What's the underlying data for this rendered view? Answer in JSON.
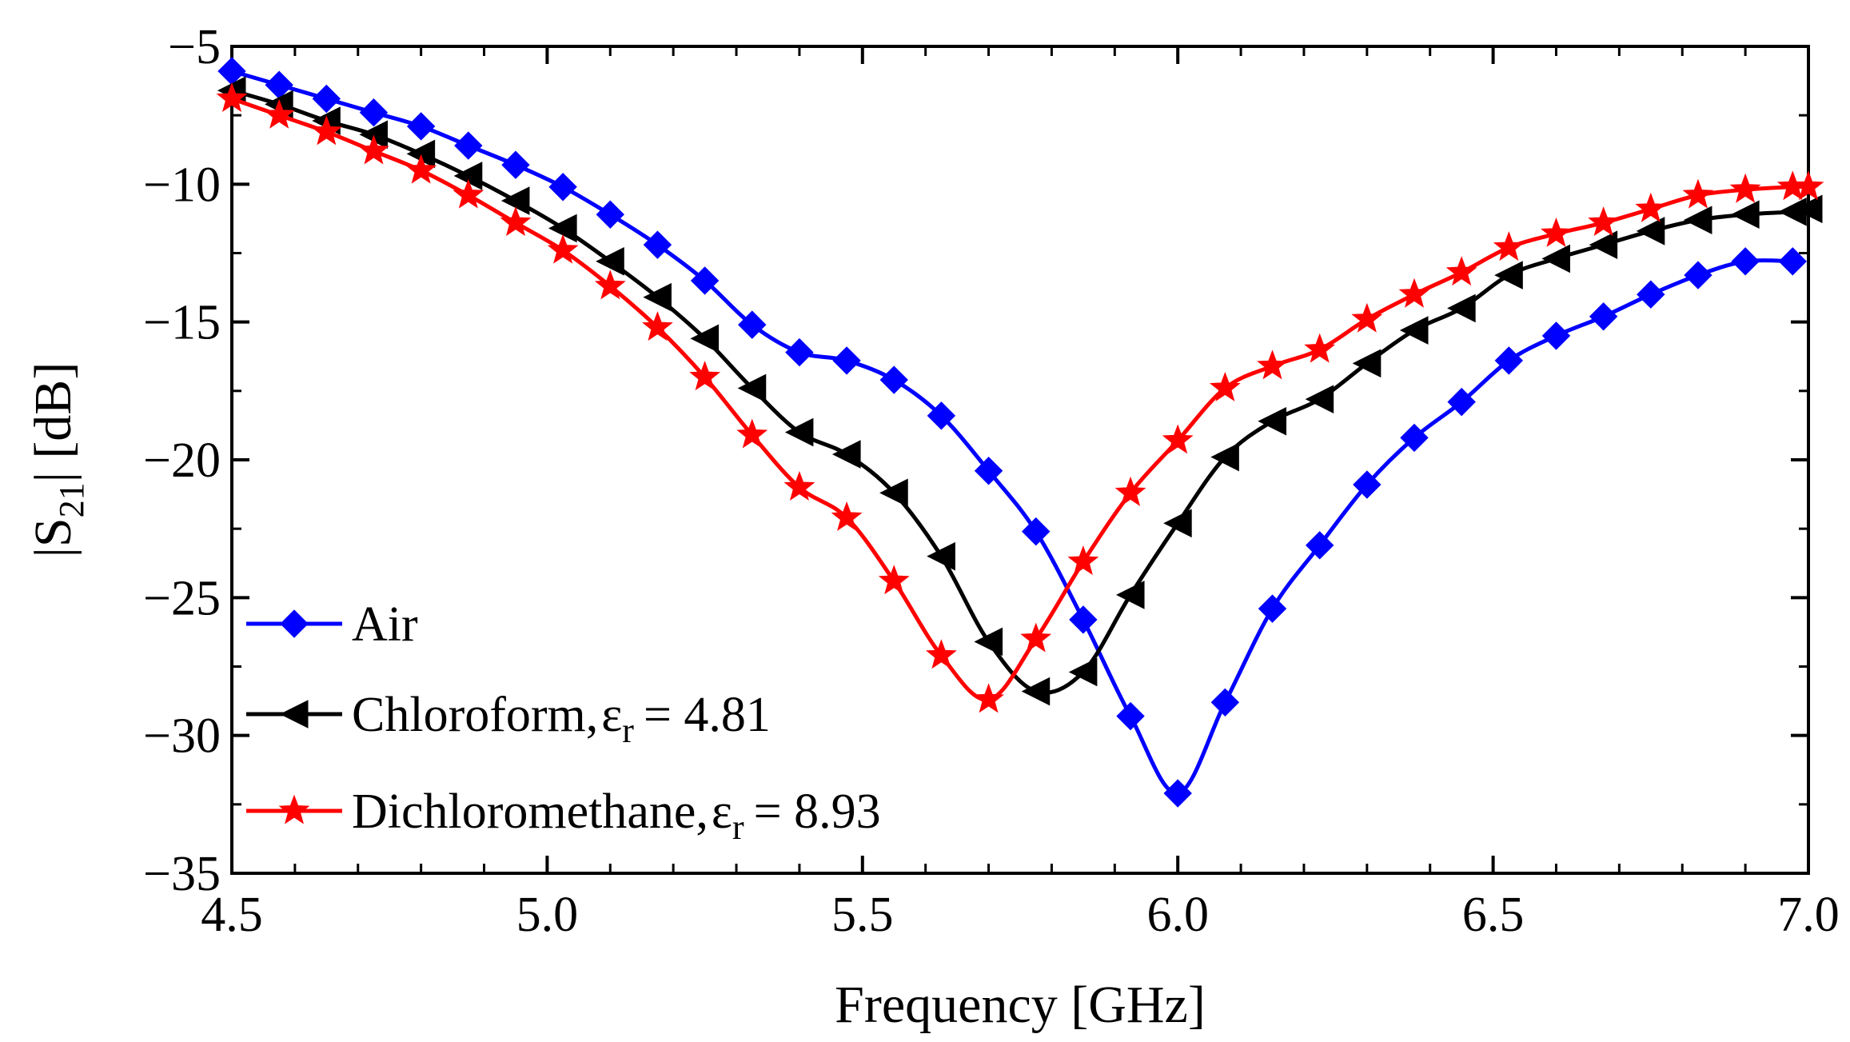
{
  "chart_data": {
    "type": "line",
    "xlabel": "Frequency [GHz]",
    "ylabel_parts": {
      "prefix": "|S",
      "subscript": "21",
      "suffix": "| [dB]"
    },
    "xlim": [
      4.5,
      7.0
    ],
    "ylim": [
      -35,
      -5
    ],
    "x_ticks": [
      4.5,
      5.0,
      5.5,
      6.0,
      6.5,
      7.0
    ],
    "x_tick_labels": [
      "4.5",
      "5.0",
      "5.5",
      "6.0",
      "6.5",
      "7.0"
    ],
    "y_ticks": [
      -35,
      -30,
      -25,
      -20,
      -15,
      -10,
      -5
    ],
    "y_tick_labels": [
      "−35",
      "−30",
      "−25",
      "−20",
      "−15",
      "−10",
      "−5"
    ],
    "legend_position": "lower-left",
    "series": [
      {
        "name": "Air",
        "legend": {
          "main": "Air"
        },
        "color": "#0000ff",
        "marker": "diamond",
        "x": [
          4.5,
          4.575,
          4.65,
          4.725,
          4.8,
          4.875,
          4.95,
          5.025,
          5.1,
          5.175,
          5.25,
          5.325,
          5.4,
          5.475,
          5.55,
          5.625,
          5.7,
          5.775,
          5.85,
          5.925,
          6.0,
          6.075,
          6.15,
          6.225,
          6.3,
          6.375,
          6.45,
          6.525,
          6.6,
          6.675,
          6.75,
          6.825,
          6.9,
          6.975
        ],
        "y": [
          -5.9,
          -6.4,
          -6.9,
          -7.4,
          -7.9,
          -8.6,
          -9.3,
          -10.1,
          -11.1,
          -12.2,
          -13.5,
          -15.1,
          -16.1,
          -16.4,
          -17.1,
          -18.4,
          -20.4,
          -22.6,
          -25.8,
          -29.3,
          -32.1,
          -28.8,
          -25.4,
          -23.1,
          -20.9,
          -19.2,
          -17.9,
          -16.4,
          -15.5,
          -14.8,
          -14.0,
          -13.3,
          -12.8,
          -12.8
        ]
      },
      {
        "name": "Chloroform",
        "legend": {
          "main": "Chloroform,",
          "symbol": "ε",
          "sub": "r",
          "value": "= 4.81"
        },
        "color": "#000000",
        "marker": "triangle-left",
        "x": [
          4.5,
          4.575,
          4.65,
          4.725,
          4.8,
          4.875,
          4.95,
          5.025,
          5.1,
          5.175,
          5.25,
          5.325,
          5.4,
          5.475,
          5.55,
          5.625,
          5.7,
          5.775,
          5.85,
          5.925,
          6.0,
          6.075,
          6.15,
          6.225,
          6.3,
          6.375,
          6.45,
          6.525,
          6.6,
          6.675,
          6.75,
          6.825,
          6.9,
          6.975,
          7.0
        ],
        "y": [
          -6.6,
          -7.1,
          -7.7,
          -8.2,
          -8.9,
          -9.7,
          -10.6,
          -11.6,
          -12.8,
          -14.1,
          -15.6,
          -17.4,
          -19.0,
          -19.8,
          -21.2,
          -23.5,
          -26.6,
          -28.4,
          -27.7,
          -24.9,
          -22.3,
          -19.9,
          -18.6,
          -17.8,
          -16.5,
          -15.3,
          -14.5,
          -13.3,
          -12.7,
          -12.2,
          -11.7,
          -11.3,
          -11.1,
          -11.0,
          -10.9
        ]
      },
      {
        "name": "Dichloromethane",
        "legend": {
          "main": "Dichloromethane,",
          "symbol": "ε",
          "sub": "r",
          "value": "= 8.93"
        },
        "color": "#ff0000",
        "marker": "star",
        "x": [
          4.5,
          4.575,
          4.65,
          4.725,
          4.8,
          4.875,
          4.95,
          5.025,
          5.1,
          5.175,
          5.25,
          5.325,
          5.4,
          5.475,
          5.55,
          5.625,
          5.7,
          5.775,
          5.85,
          5.925,
          6.0,
          6.075,
          6.15,
          6.225,
          6.3,
          6.375,
          6.45,
          6.525,
          6.6,
          6.675,
          6.75,
          6.825,
          6.9,
          6.975,
          7.0
        ],
        "y": [
          -6.9,
          -7.5,
          -8.1,
          -8.8,
          -9.5,
          -10.4,
          -11.4,
          -12.4,
          -13.7,
          -15.2,
          -17.0,
          -19.1,
          -21.0,
          -22.1,
          -24.4,
          -27.1,
          -28.7,
          -26.5,
          -23.7,
          -21.2,
          -19.3,
          -17.4,
          -16.6,
          -16.0,
          -14.9,
          -14.0,
          -13.2,
          -12.3,
          -11.8,
          -11.4,
          -10.9,
          -10.4,
          -10.2,
          -10.1,
          -10.1
        ]
      }
    ]
  }
}
